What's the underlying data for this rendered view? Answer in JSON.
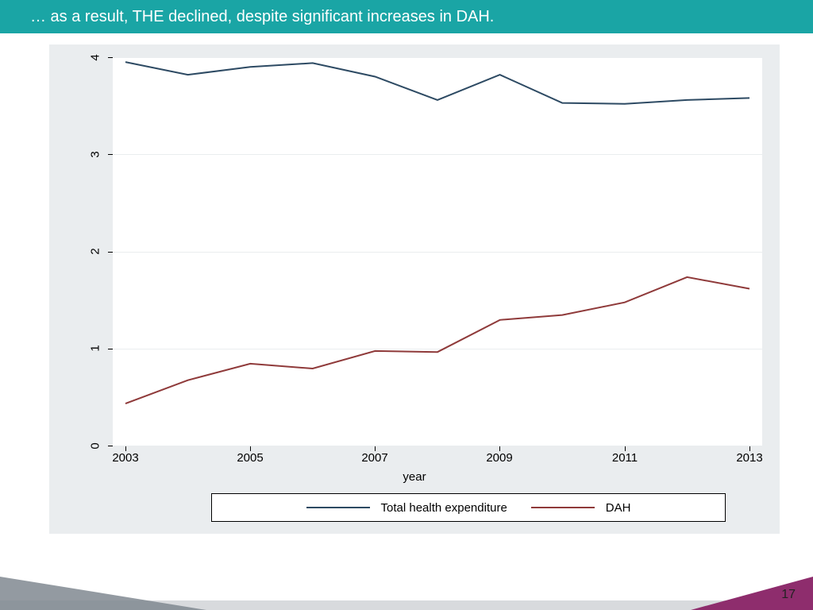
{
  "header": {
    "title": "… as a result, THE declined, despite significant increases in DAH."
  },
  "chart": {
    "type": "line",
    "background_color": "#eaedef",
    "plot_background": "#ffffff",
    "grid_color": "#eaedef",
    "x_axis": {
      "title": "year",
      "min": 2003,
      "max": 2013,
      "ticks": [
        2003,
        2005,
        2007,
        2009,
        2011,
        2013
      ],
      "label_fontsize": 15
    },
    "y_axis": {
      "min": 0,
      "max": 4,
      "ticks": [
        0,
        1,
        2,
        3,
        4
      ],
      "label_fontsize": 15,
      "rotated": true
    },
    "series": [
      {
        "name": "Total health expenditure",
        "color": "#2d4a63",
        "line_width": 2,
        "x": [
          2003,
          2004,
          2005,
          2006,
          2007,
          2008,
          2009,
          2010,
          2011,
          2012,
          2013
        ],
        "y": [
          3.95,
          3.82,
          3.9,
          3.94,
          3.8,
          3.56,
          3.82,
          3.53,
          3.52,
          3.56,
          3.58
        ]
      },
      {
        "name": "DAH",
        "color": "#8f3a3a",
        "line_width": 2,
        "x": [
          2003,
          2004,
          2005,
          2006,
          2007,
          2008,
          2009,
          2010,
          2011,
          2012,
          2013
        ],
        "y": [
          0.44,
          0.68,
          0.85,
          0.8,
          0.98,
          0.97,
          1.3,
          1.35,
          1.48,
          1.74,
          1.62
        ]
      }
    ],
    "legend": {
      "border": "#000000",
      "background": "#ffffff",
      "fontsize": 15
    }
  },
  "footer": {
    "page_number": "17",
    "triangle_left_color": "#808890",
    "triangle_right_color": "#8e2d6d",
    "bar_color": "#d8dadd"
  }
}
